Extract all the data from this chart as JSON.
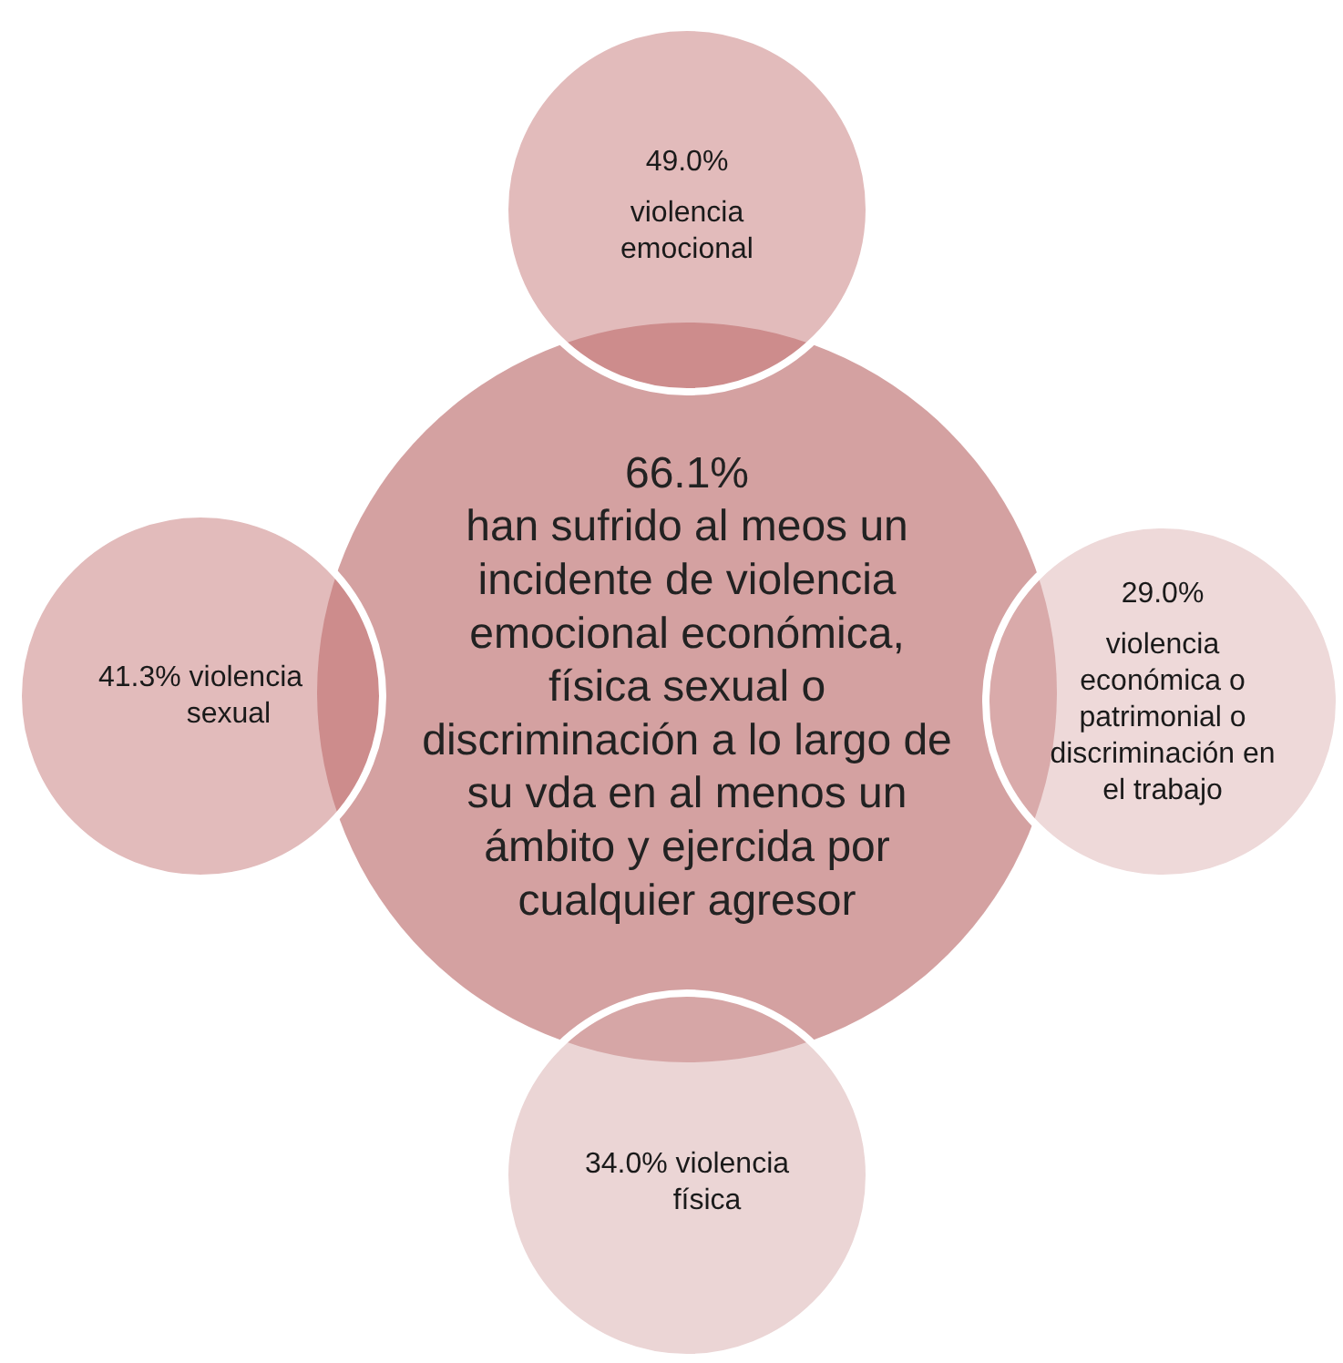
{
  "chart_data": {
    "type": "other",
    "categories": [
      "han sufrido al meos un incidente de violencia emocional económica, física sexual o discriminación a lo largo de su vda en al menos un ámbito y ejercida por cualquier agresor",
      "violencia emocional",
      "violencia económica o patrimonial o discriminación en el trabajo",
      "violencia física",
      "violencia sexual"
    ],
    "values": [
      66.1,
      49.0,
      29.0,
      34.0,
      41.3
    ],
    "value_labels": [
      "66.1%",
      "49.0%",
      "29.0%",
      "34.0%",
      "41.3%"
    ],
    "colors": [
      "#d4a1a1",
      "#e2bbbb",
      "#eed9d9",
      "#ebd5d5",
      "#e2bbbb"
    ]
  }
}
